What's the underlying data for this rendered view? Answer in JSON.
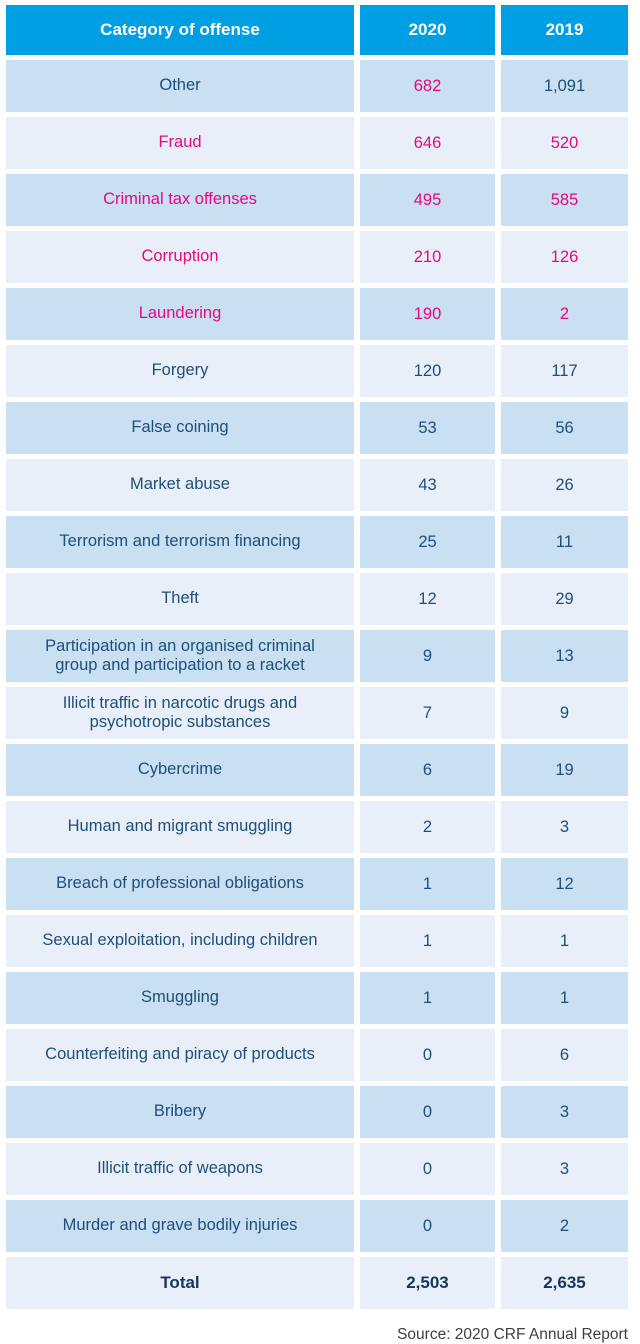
{
  "colors": {
    "header_bg": "#009FE3",
    "row_alt_dark": "#C9DFF2",
    "row_alt_light": "#E8EFF9",
    "highlight_pink": "#E5097F",
    "body_navy": "#1F4E79",
    "total_navy": "#17365D",
    "source_gray": "#3F3F3E"
  },
  "table": {
    "headers": [
      "Category of offense",
      "2020",
      "2019"
    ],
    "rows": [
      {
        "category": "Other",
        "y2020": "682",
        "y2019": "1,091",
        "pink": [
          "y2020"
        ]
      },
      {
        "category": "Fraud",
        "y2020": "646",
        "y2019": "520",
        "pink": [
          "category",
          "y2020",
          "y2019"
        ]
      },
      {
        "category": "Criminal tax offenses",
        "y2020": "495",
        "y2019": "585",
        "pink": [
          "category",
          "y2020",
          "y2019"
        ]
      },
      {
        "category": "Corruption",
        "y2020": "210",
        "y2019": "126",
        "pink": [
          "category",
          "y2020",
          "y2019"
        ]
      },
      {
        "category": "Laundering",
        "y2020": "190",
        "y2019": "2",
        "pink": [
          "category",
          "y2020",
          "y2019"
        ]
      },
      {
        "category": "Forgery",
        "y2020": "120",
        "y2019": "117",
        "pink": []
      },
      {
        "category": "False coining",
        "y2020": "53",
        "y2019": "56",
        "pink": []
      },
      {
        "category": "Market abuse",
        "y2020": "43",
        "y2019": "26",
        "pink": []
      },
      {
        "category": "Terrorism and terrorism financing",
        "y2020": "25",
        "y2019": "11",
        "pink": []
      },
      {
        "category": "Theft",
        "y2020": "12",
        "y2019": "29",
        "pink": []
      },
      {
        "category": "Participation in an organised criminal group and participation to a racket",
        "y2020": "9",
        "y2019": "13",
        "pink": []
      },
      {
        "category": "Illicit traffic in narcotic drugs and psychotropic substances",
        "y2020": "7",
        "y2019": "9",
        "pink": []
      },
      {
        "category": "Cybercrime",
        "y2020": "6",
        "y2019": "19",
        "pink": []
      },
      {
        "category": "Human and migrant smuggling",
        "y2020": "2",
        "y2019": "3",
        "pink": []
      },
      {
        "category": "Breach of professional obligations",
        "y2020": "1",
        "y2019": "12",
        "pink": []
      },
      {
        "category": "Sexual exploitation, including children",
        "y2020": "1",
        "y2019": "1",
        "pink": []
      },
      {
        "category": "Smuggling",
        "y2020": "1",
        "y2019": "1",
        "pink": []
      },
      {
        "category": "Counterfeiting and piracy of products",
        "y2020": "0",
        "y2019": "6",
        "pink": []
      },
      {
        "category": "Bribery",
        "y2020": "0",
        "y2019": "3",
        "pink": []
      },
      {
        "category": "Illicit traffic of weapons",
        "y2020": "0",
        "y2019": "3",
        "pink": []
      },
      {
        "category": "Murder and grave bodily injuries",
        "y2020": "0",
        "y2019": "2",
        "pink": []
      }
    ],
    "total_row": {
      "category": "Total",
      "y2020": "2,503",
      "y2019": "2,635"
    }
  },
  "source_note": "Source: 2020 CRF Annual Report",
  "chart_data": {
    "type": "table",
    "title": "",
    "columns": [
      "Category of offense",
      "2020",
      "2019"
    ],
    "rows": [
      [
        "Other",
        682,
        1091
      ],
      [
        "Fraud",
        646,
        520
      ],
      [
        "Criminal tax offenses",
        495,
        585
      ],
      [
        "Corruption",
        210,
        126
      ],
      [
        "Laundering",
        190,
        2
      ],
      [
        "Forgery",
        120,
        117
      ],
      [
        "False coining",
        53,
        56
      ],
      [
        "Market abuse",
        43,
        26
      ],
      [
        "Terrorism and terrorism financing",
        25,
        11
      ],
      [
        "Theft",
        12,
        29
      ],
      [
        "Participation in an organised criminal group and participation to a racket",
        9,
        13
      ],
      [
        "Illicit traffic in narcotic drugs and psychotropic substances",
        7,
        9
      ],
      [
        "Cybercrime",
        6,
        19
      ],
      [
        "Human and migrant smuggling",
        2,
        3
      ],
      [
        "Breach of professional obligations",
        1,
        12
      ],
      [
        "Sexual exploitation, including children",
        1,
        1
      ],
      [
        "Smuggling",
        1,
        1
      ],
      [
        "Counterfeiting and piracy of products",
        0,
        6
      ],
      [
        "Bribery",
        0,
        3
      ],
      [
        "Illicit traffic of weapons",
        0,
        3
      ],
      [
        "Murder and grave bodily injuries",
        0,
        2
      ]
    ],
    "total": [
      "Total",
      2503,
      2635
    ],
    "annotations": [
      "Source: 2020 CRF Annual Report"
    ],
    "legend_position": "none",
    "grid": "cell-spacing-white"
  }
}
